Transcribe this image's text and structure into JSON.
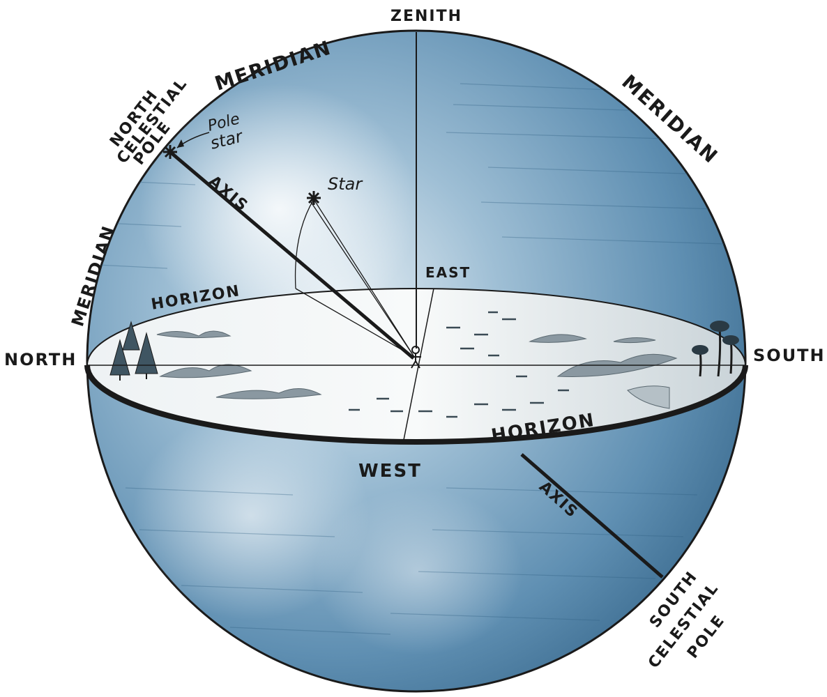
{
  "labels": {
    "zenith": "ZENITH",
    "meridian_left_top": "MERIDIAN",
    "meridian_right": "MERIDIAN",
    "meridian_left": "MERIDIAN",
    "north_celestial_pole": [
      "NORTH",
      "CELESTIAL",
      "POLE"
    ],
    "pole_star": [
      "Pole",
      "star"
    ],
    "star": "Star",
    "axis_upper": "AXIS",
    "axis_lower": "AXIS",
    "east": "EAST",
    "horizon_back": "HORIZON",
    "horizon_front": "HORIZON",
    "north": "NORTH",
    "south": "SOUTH",
    "west": "WEST",
    "south_celestial_pole": [
      "SOUTH",
      "CELESTIAL",
      "POLE"
    ]
  },
  "colors": {
    "sphere_dark": "#3d6f93",
    "sphere_mid": "#6f9cbc",
    "sphere_light": "#d7e6ef",
    "ink": "#1a1a1a"
  }
}
